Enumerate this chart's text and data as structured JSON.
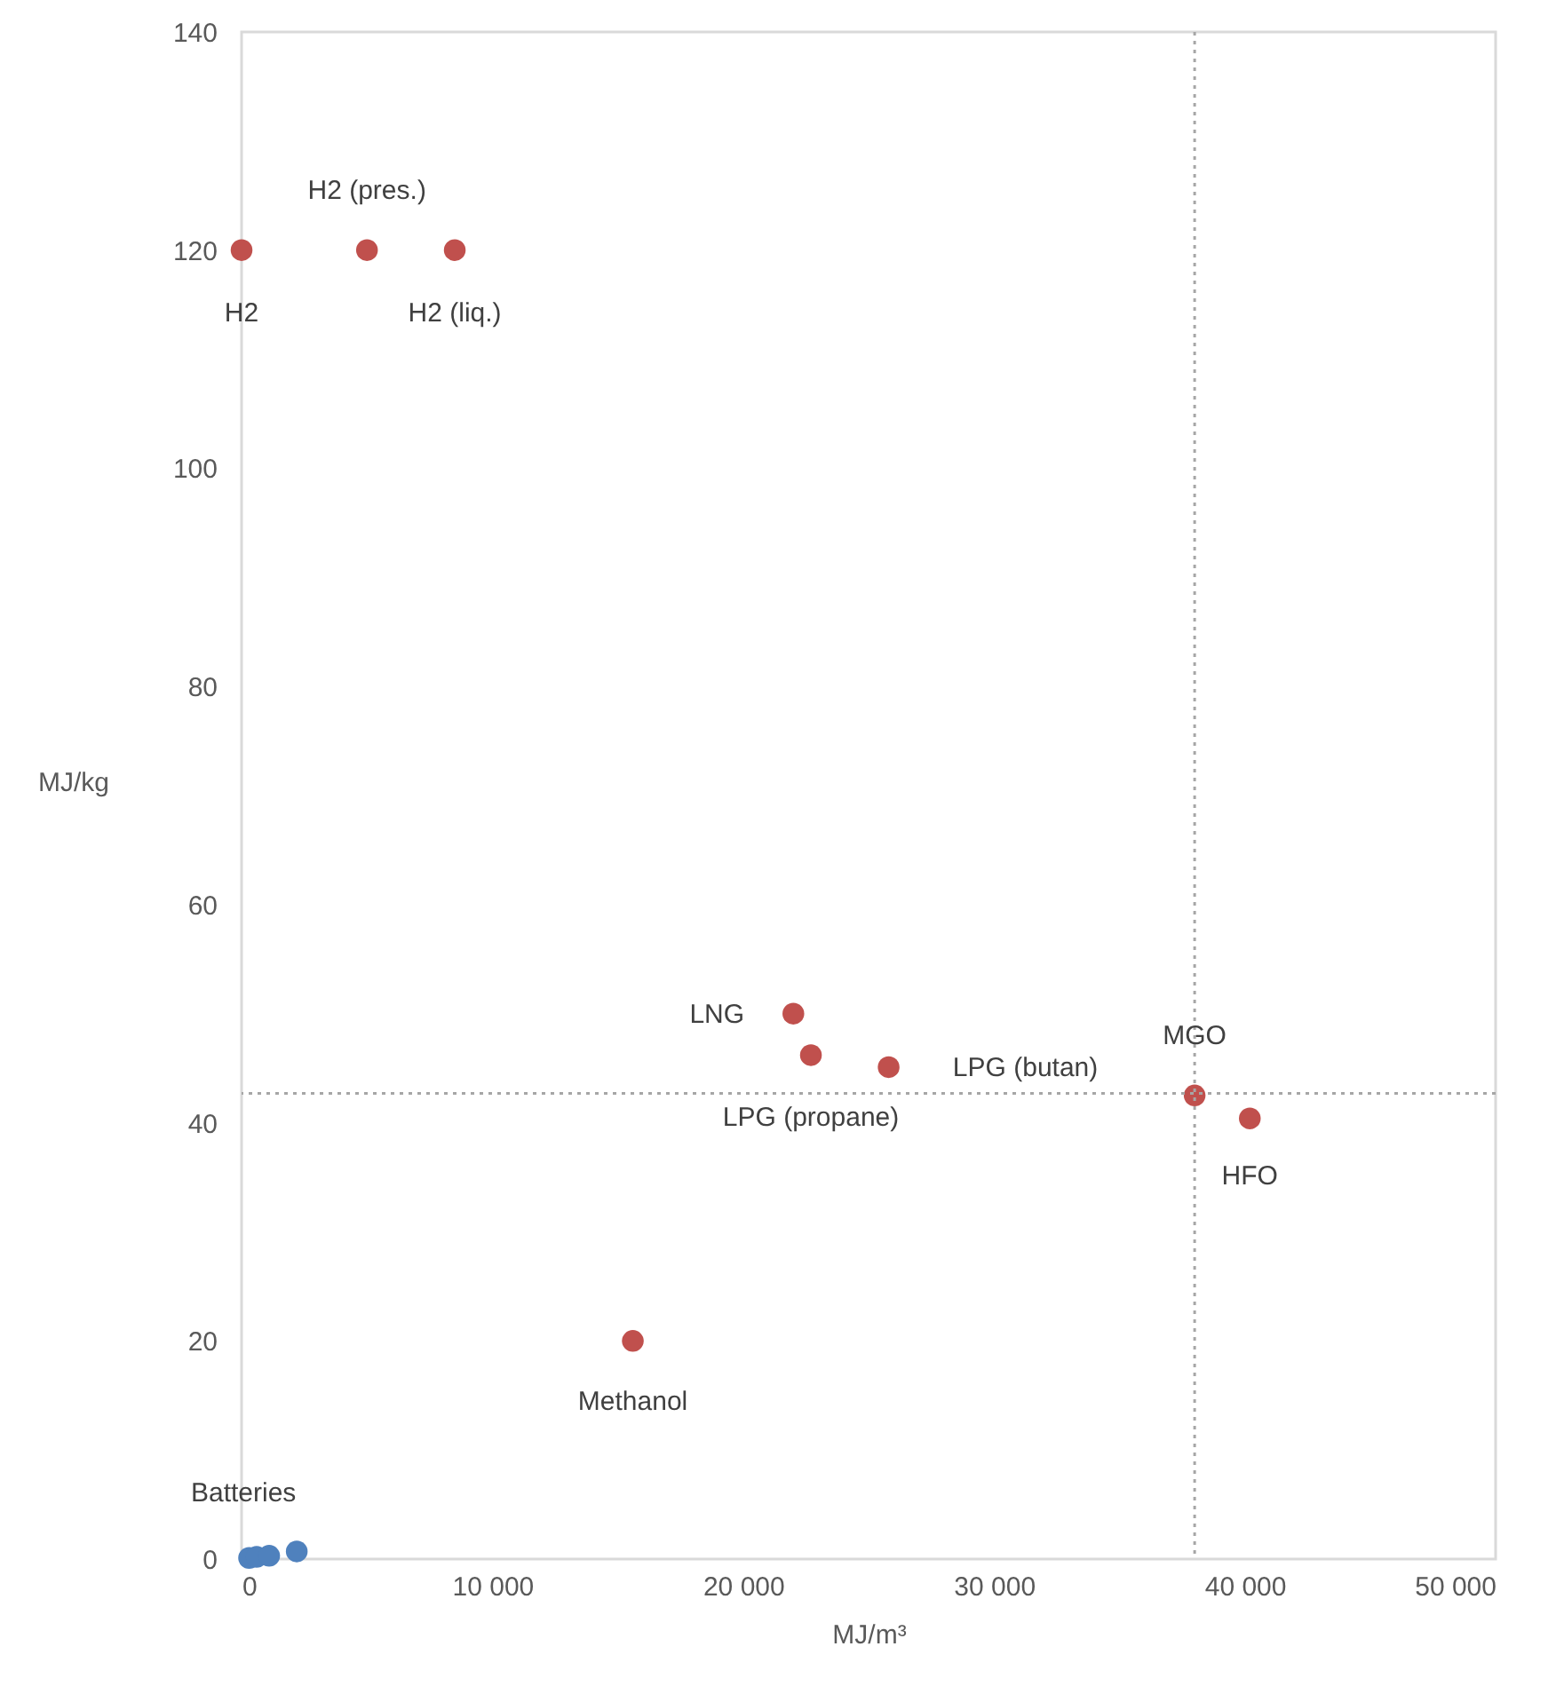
{
  "chart_data": {
    "type": "scatter",
    "xlabel": "MJ/m³",
    "ylabel": "MJ/kg",
    "xlim": [
      0,
      50000
    ],
    "ylim": [
      0,
      140
    ],
    "xticks": [
      0,
      {
        "value": 10000,
        "label": "10 000"
      },
      {
        "value": 20000,
        "label": "20 000"
      },
      {
        "value": 30000,
        "label": "30 000"
      },
      {
        "value": 40000,
        "label": "40 000"
      },
      {
        "value": 50000,
        "label": "50 000"
      }
    ],
    "yticks": [
      0,
      20,
      40,
      60,
      80,
      100,
      120,
      140
    ],
    "grid": false,
    "marker": "circle",
    "series": [
      {
        "color": "#c0504d",
        "x": [
          0,
          5000,
          8500,
          22000,
          22700,
          25800,
          38000,
          40200,
          15600
        ],
        "values": [
          120,
          120,
          120,
          50,
          46.2,
          45.1,
          42.5,
          40.4,
          20
        ]
      },
      {
        "color": "#4f81bd",
        "x": [
          300,
          600,
          1100,
          2200
        ],
        "values": [
          0.1,
          0.2,
          0.3,
          0.7
        ]
      }
    ],
    "ref_lines": [
      {
        "axis": "x",
        "value": 38000,
        "color": "#a6a6a6",
        "line_style": "dotted"
      },
      {
        "axis": "y",
        "value": 42.7,
        "color": "#a6a6a6",
        "line_style": "dotted"
      }
    ],
    "annotations": [
      {
        "text": "H2",
        "x": 0,
        "y": 120
      },
      {
        "text": "H2 (pres.)",
        "x": 5000,
        "y": 120
      },
      {
        "text": "H2 (liq.)",
        "x": 8500,
        "y": 120
      },
      {
        "text": "LNG",
        "x": 22000,
        "y": 50
      },
      {
        "text": "LPG (propane)",
        "x": 22700,
        "y": 46.2
      },
      {
        "text": "LPG (butan)",
        "x": 25800,
        "y": 45.1
      },
      {
        "text": "MGO",
        "x": 38000,
        "y": 42.5
      },
      {
        "text": "HFO",
        "x": 40200,
        "y": 40.4
      },
      {
        "text": "Methanol",
        "x": 15600,
        "y": 20
      },
      {
        "text": "Batteries",
        "x": 2200,
        "y": 0.7
      }
    ]
  }
}
